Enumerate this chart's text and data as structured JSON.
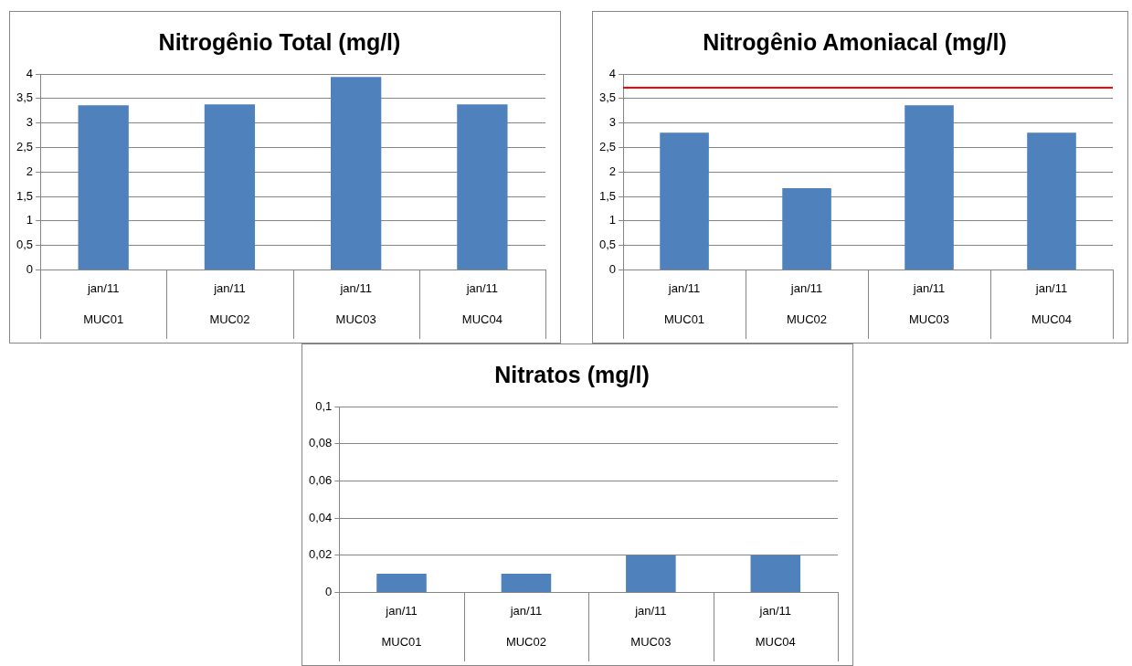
{
  "chart_data": [
    {
      "type": "bar",
      "title": "Nitrogênio Total (mg/l)",
      "categories": [
        "jan/11\nMUC01",
        "jan/11\nMUC02",
        "jan/11\nMUC03",
        "jan/11\nMUC04"
      ],
      "values": [
        3.36,
        3.38,
        3.94,
        3.38
      ],
      "color": "#4f81bd",
      "ylim": [
        0,
        4
      ],
      "yticks": [
        {
          "value": 0,
          "label": "0"
        },
        {
          "value": 0.5,
          "label": "0,5"
        },
        {
          "value": 1,
          "label": "1"
        },
        {
          "value": 1.5,
          "label": "1,5"
        },
        {
          "value": 2,
          "label": "2"
        },
        {
          "value": 2.5,
          "label": "2,5"
        },
        {
          "value": 3,
          "label": "3"
        },
        {
          "value": 3.5,
          "label": "3,5"
        },
        {
          "value": 4,
          "label": "4"
        }
      ],
      "grid": "y"
    },
    {
      "type": "bar",
      "title": "Nitrogênio Amoniacal (mg/l)",
      "categories": [
        "jan/11\nMUC01",
        "jan/11\nMUC02",
        "jan/11\nMUC03",
        "jan/11\nMUC04"
      ],
      "values": [
        2.8,
        1.67,
        3.36,
        2.8
      ],
      "color": "#4f81bd",
      "ylim": [
        0,
        4
      ],
      "yticks": [
        {
          "value": 0,
          "label": "0"
        },
        {
          "value": 0.5,
          "label": "0,5"
        },
        {
          "value": 1,
          "label": "1"
        },
        {
          "value": 1.5,
          "label": "1,5"
        },
        {
          "value": 2,
          "label": "2"
        },
        {
          "value": 2.5,
          "label": "2,5"
        },
        {
          "value": 3,
          "label": "3"
        },
        {
          "value": 3.5,
          "label": "3,5"
        },
        {
          "value": 4,
          "label": "4"
        }
      ],
      "grid": "y",
      "ref_lines": [
        {
          "axis": "y",
          "value": 3.72,
          "color": "#ff0000"
        }
      ]
    },
    {
      "type": "bar",
      "title": "Nitratos (mg/l)",
      "categories": [
        "jan/11\nMUC01",
        "jan/11\nMUC02",
        "jan/11\nMUC03",
        "jan/11\nMUC04"
      ],
      "values": [
        0.01,
        0.01,
        0.02,
        0.02
      ],
      "color": "#4f81bd",
      "ylim": [
        0,
        0.1
      ],
      "yticks": [
        {
          "value": 0,
          "label": "0"
        },
        {
          "value": 0.02,
          "label": "0,02"
        },
        {
          "value": 0.04,
          "label": "0,04"
        },
        {
          "value": 0.06,
          "label": "0,06"
        },
        {
          "value": 0.08,
          "label": "0,08"
        },
        {
          "value": 0.1,
          "label": "0,1"
        }
      ],
      "grid": "y"
    }
  ]
}
